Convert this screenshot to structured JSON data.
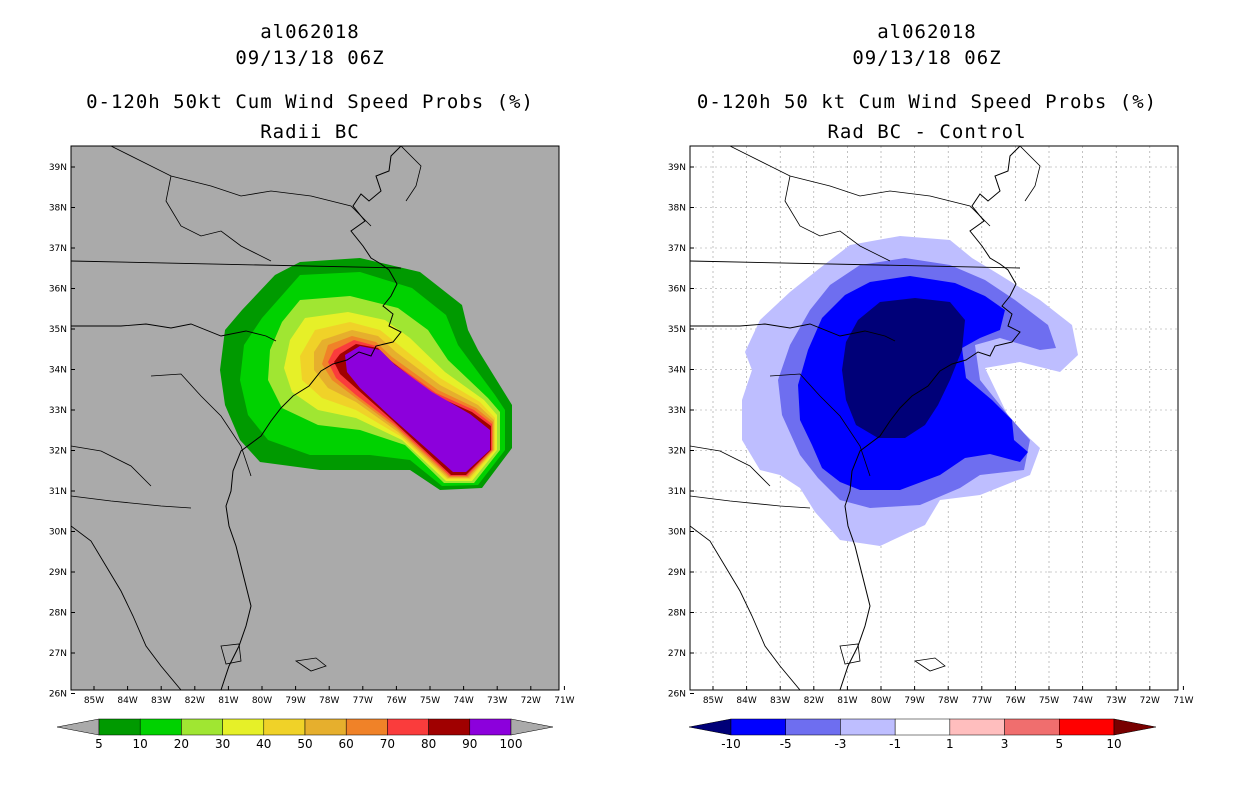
{
  "left": {
    "storm_id": "al062018",
    "datetime": "09/13/18 06Z",
    "title_line1": "0-120h 50kt Cum Wind Speed Probs (%)",
    "title_line2": "Radii BC",
    "lat_labels": [
      "39N",
      "38N",
      "37N",
      "36N",
      "35N",
      "34N",
      "33N",
      "32N",
      "31N",
      "30N",
      "29N",
      "28N",
      "27N",
      "26N"
    ],
    "lon_labels": [
      "85W",
      "84W",
      "83W",
      "82W",
      "81W",
      "80W",
      "79W",
      "78W",
      "77W",
      "76W",
      "75W",
      "74W",
      "73W",
      "72W",
      "71W"
    ],
    "colorbar": {
      "labels": [
        "5",
        "10",
        "20",
        "30",
        "40",
        "50",
        "60",
        "70",
        "80",
        "90",
        "100"
      ],
      "colors": [
        "#009a00",
        "#00d200",
        "#a0e632",
        "#e6f028",
        "#f0d228",
        "#e6af2d",
        "#f08228",
        "#fa3c3c",
        "#a00000",
        "#8c00dc"
      ],
      "under_color": "#aaaaaa",
      "over_color": "#aaaaaa"
    },
    "background_color": "#aaaaaa"
  },
  "right": {
    "storm_id": "al062018",
    "datetime": "09/13/18 06Z",
    "title_line1": "0-120h 50 kt Cum Wind Speed Probs (%)",
    "title_line2": "Rad BC - Control",
    "lat_labels": [
      "39N",
      "38N",
      "37N",
      "36N",
      "35N",
      "34N",
      "33N",
      "32N",
      "31N",
      "30N",
      "29N",
      "28N",
      "27N",
      "26N"
    ],
    "lon_labels": [
      "85W",
      "84W",
      "83W",
      "82W",
      "81W",
      "80W",
      "79W",
      "78W",
      "77W",
      "76W",
      "75W",
      "74W",
      "73W",
      "72W",
      "71W"
    ],
    "colorbar": {
      "labels": [
        "-10",
        "-5",
        "-3",
        "-1",
        "1",
        "3",
        "5",
        "10"
      ],
      "colors": [
        "#0000ff",
        "#6e6ef0",
        "#bebeff",
        "#ffffff",
        "#ffbebe",
        "#f06e6e",
        "#ff0000"
      ],
      "under_color": "#000078",
      "over_color": "#780000"
    },
    "background_color": "#ffffff"
  }
}
